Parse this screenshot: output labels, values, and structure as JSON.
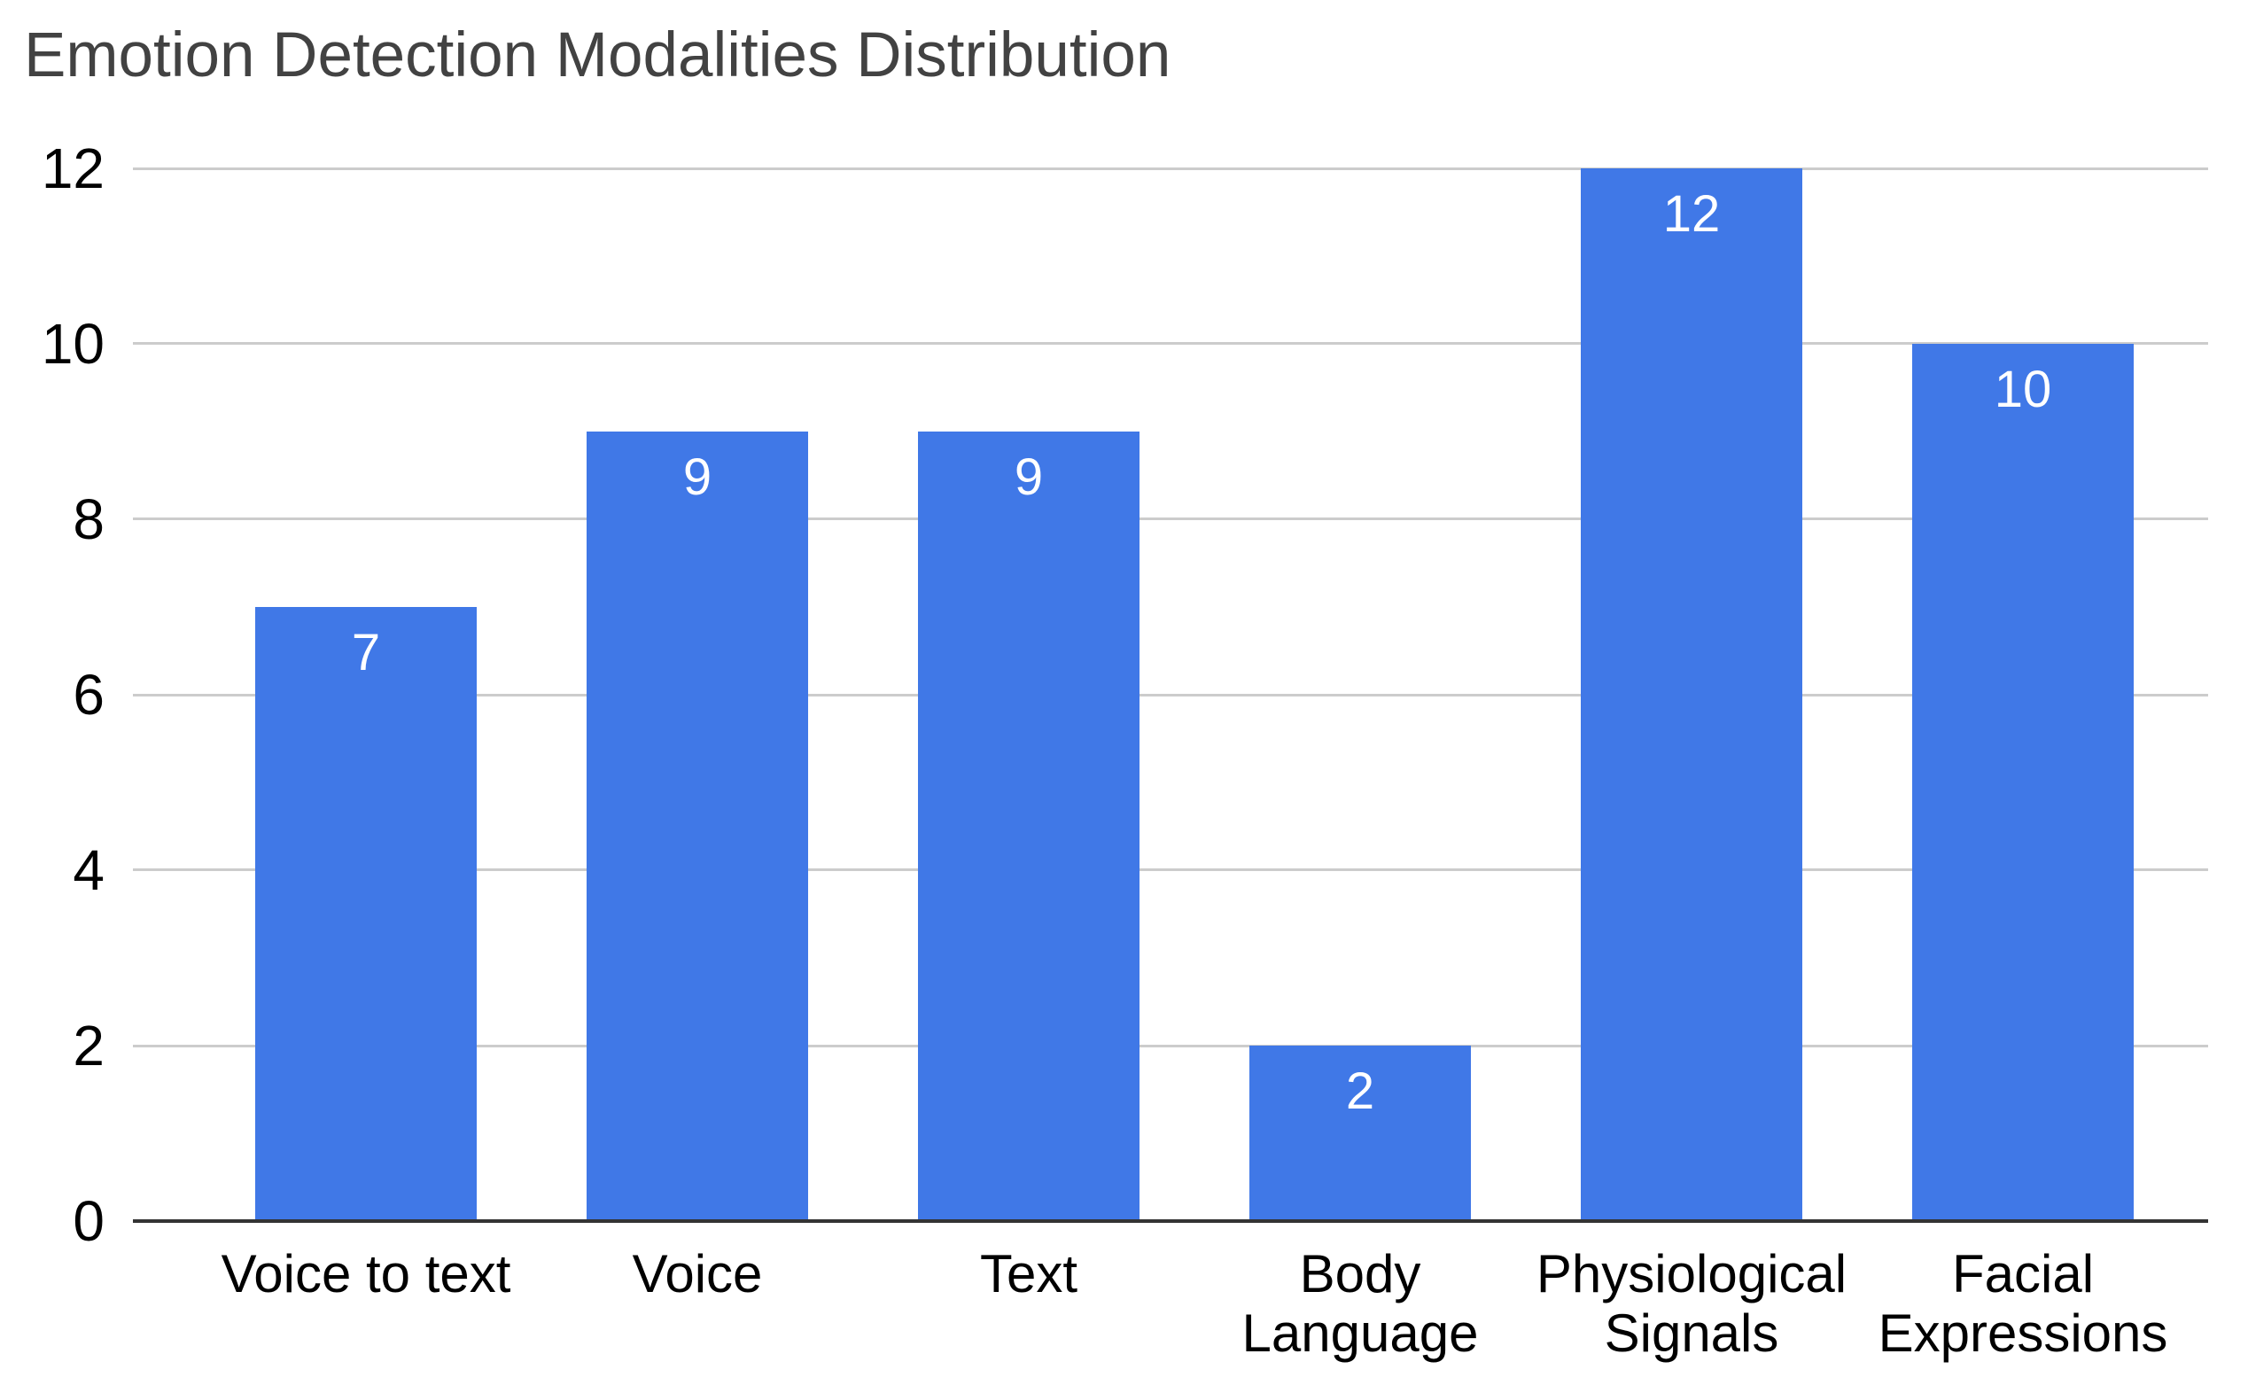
{
  "chart_data": {
    "type": "bar",
    "title": "Emotion Detection Modalities Distribution",
    "categories": [
      "Voice to text",
      "Voice",
      "Text",
      "Body Language",
      "Physiological Signals",
      "Facial Expressions"
    ],
    "values": [
      7,
      9,
      9,
      2,
      12,
      10
    ],
    "data_labels": [
      "7",
      "9",
      "9",
      "2",
      "12",
      "10"
    ],
    "xlabel": "",
    "ylabel": "",
    "ylim": [
      0,
      12
    ],
    "yticks": [
      0,
      2,
      4,
      6,
      8,
      10,
      12
    ],
    "grid": true,
    "legend": "none",
    "colors": {
      "bar": "#4078E7",
      "data_label": "#FFFFFF",
      "title": "#424242",
      "axis_label": "#000000",
      "gridline": "#CCCCCC",
      "axis_line": "#333333",
      "background": "#FFFFFF"
    }
  }
}
